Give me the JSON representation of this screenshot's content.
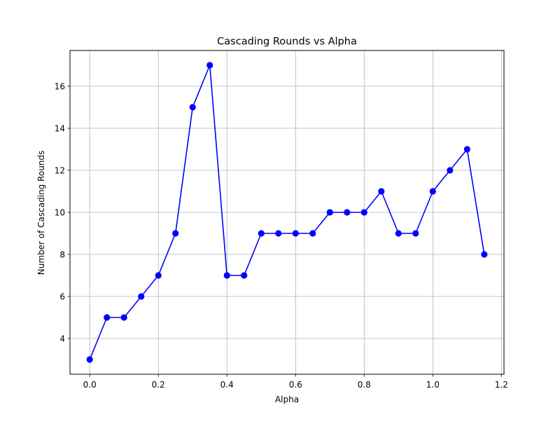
{
  "chart_data": {
    "type": "line",
    "title": "Cascading Rounds vs Alpha",
    "xlabel": "Alpha",
    "ylabel": "Number of Cascading Rounds",
    "xlim": [
      -0.0575,
      1.2075
    ],
    "ylim": [
      2.3,
      17.7
    ],
    "xticks": [
      0.0,
      0.2,
      0.4,
      0.6,
      0.8,
      1.0,
      1.2
    ],
    "xtick_labels": [
      "0.0",
      "0.2",
      "0.4",
      "0.6",
      "0.8",
      "1.0",
      "1.2"
    ],
    "yticks": [
      4,
      6,
      8,
      10,
      12,
      14,
      16
    ],
    "ytick_labels": [
      "4",
      "6",
      "8",
      "10",
      "12",
      "14",
      "16"
    ],
    "grid": true,
    "x": [
      0.0,
      0.05,
      0.1,
      0.15,
      0.2,
      0.25,
      0.3,
      0.35,
      0.4,
      0.45,
      0.5,
      0.55,
      0.6,
      0.65,
      0.7,
      0.75,
      0.8,
      0.85,
      0.9,
      0.95,
      1.0,
      1.05,
      1.1,
      1.15
    ],
    "series": [
      {
        "color": "#0000ff",
        "marker": "circle",
        "values": [
          3,
          5,
          5,
          6,
          7,
          9,
          15,
          17,
          7,
          7,
          9,
          9,
          9,
          9,
          10,
          10,
          10,
          11,
          9,
          9,
          11,
          12,
          13,
          8
        ]
      }
    ]
  }
}
